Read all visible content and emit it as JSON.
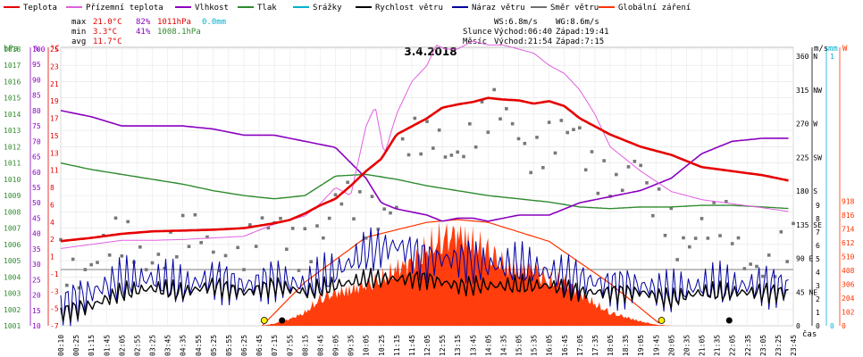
{
  "header": {
    "legend": [
      {
        "label": "Teplota",
        "color": "#e60000"
      },
      {
        "label": "Přízemní teplota",
        "color": "#e060e0"
      },
      {
        "label": "Vlhkost",
        "color": "#8a00c0"
      },
      {
        "label": "Tlak",
        "color": "#2e8b2e"
      },
      {
        "label": "Srážky",
        "color": "#00b0d0"
      },
      {
        "label": "Rychlost větru",
        "color": "#000000"
      },
      {
        "label": "Náraz větru",
        "color": "#0000a0"
      },
      {
        "label": "Směr větru",
        "color": "#707070"
      },
      {
        "label": "Globální záření",
        "color": "#ff3300"
      }
    ],
    "stats": {
      "max": {
        "label": "max",
        "temp": "21.0°C",
        "hum": "82%",
        "press": "1011hPa",
        "rain": "0.0mm"
      },
      "min": {
        "label": "min",
        "temp": "3.3°C",
        "hum": "41%",
        "press": "1008.1hPa"
      },
      "avg": {
        "label": "avg",
        "temp": "11.7°C"
      }
    },
    "wind_stats": {
      "ws": "WS:6.8m/s",
      "wg": "WG:8.6m/s"
    },
    "sun": {
      "label": "Slunce",
      "rise": "Východ:06:40",
      "set": "Západ:19:41"
    },
    "moon": {
      "label": "Měsíc",
      "rise": "Východ:21:54",
      "set": "Západ:7:15"
    }
  },
  "chart_data": {
    "type": "line",
    "title": "3.4.2018",
    "xlabel": "čas",
    "x_ticks": [
      "00:10",
      "00:25",
      "01:15",
      "01:45",
      "02:05",
      "02:55",
      "03:25",
      "03:45",
      "04:35",
      "04:55",
      "05:25",
      "05:55",
      "06:25",
      "06:45",
      "07:15",
      "07:55",
      "08:15",
      "08:45",
      "09:05",
      "09:35",
      "10:05",
      "10:25",
      "11:15",
      "11:45",
      "12:05",
      "12:55",
      "13:15",
      "13:45",
      "14:05",
      "14:35",
      "15:05",
      "15:35",
      "16:05",
      "16:45",
      "17:05",
      "17:35",
      "18:05",
      "18:35",
      "19:05",
      "19:45",
      "20:05",
      "20:35",
      "21:05",
      "21:35",
      "22:05",
      "22:35",
      "23:05",
      "23:25",
      "23:45"
    ],
    "axes": {
      "pressure": {
        "label": "hPa",
        "color": "#2e8b2e",
        "ticks": [
          "1001",
          "1002",
          "1003",
          "1004",
          "1005",
          "1006",
          "1007",
          "1008",
          "1009",
          "1010",
          "1011",
          "1012",
          "1013",
          "1014",
          "1015",
          "1016",
          "1017",
          "1018"
        ]
      },
      "humidity": {
        "label": "%",
        "color": "#8a00c0",
        "ticks": [
          "10",
          "15",
          "20",
          "25",
          "30",
          "35",
          "40",
          "45",
          "50",
          "55",
          "60",
          "65",
          "70",
          "75",
          "80",
          "85",
          "90",
          "95",
          "100"
        ]
      },
      "temperature": {
        "label": "°C",
        "color": "#e60000",
        "ticks": [
          "-7",
          "-5",
          "-3",
          "-1",
          "1",
          "2",
          "4",
          "6",
          "8",
          "11",
          "13",
          "15",
          "17",
          "19",
          "21",
          "23",
          "25"
        ]
      },
      "wind_dir": {
        "ticks": [
          "0",
          "45 NE",
          "90 E",
          "135 SE",
          "180 S",
          "225 SW",
          "270 W",
          "315 NW",
          "360 N"
        ]
      },
      "wind_speed": {
        "label": "m/s",
        "ticks": [
          "0",
          "1",
          "2",
          "3",
          "4",
          "5",
          "6",
          "7",
          "8",
          "9"
        ]
      },
      "rain": {
        "label": "mm",
        "color": "#00b0d0",
        "ticks": [
          "0",
          "1"
        ]
      },
      "radiation": {
        "label": "W",
        "color": "#ff3300",
        "ticks": [
          "0",
          "102",
          "204",
          "306",
          "408",
          "510",
          "612",
          "714",
          "816",
          "918"
        ]
      }
    },
    "series": [
      {
        "name": "Teplota",
        "unit": "°C",
        "x": [
          0,
          1,
          2,
          3,
          4,
          5,
          6,
          7,
          7.5,
          8,
          8.5,
          9,
          9.5,
          10,
          10.5,
          11,
          11.5,
          12,
          12.5,
          13,
          13.5,
          14,
          14.5,
          15,
          15.5,
          16,
          16.5,
          17,
          18,
          19,
          20,
          21,
          22,
          23,
          23.9
        ],
        "values": [
          3.4,
          3.8,
          4.3,
          4.6,
          4.7,
          4.8,
          5.0,
          5.6,
          6.0,
          6.8,
          7.8,
          8.6,
          10.2,
          12.0,
          13.5,
          16.5,
          17.5,
          18.5,
          19.8,
          20.2,
          20.5,
          21.0,
          20.8,
          20.7,
          20.3,
          20.6,
          20.0,
          18.5,
          16.5,
          15.0,
          14.0,
          12.5,
          12.0,
          11.5,
          10.8
        ]
      },
      {
        "name": "Přízemní teplota",
        "unit": "°C",
        "x": [
          0,
          1,
          2,
          3,
          4,
          5,
          6,
          7,
          8,
          8.5,
          9,
          9.5,
          10,
          10.3,
          10.6,
          11,
          11.5,
          12,
          12.3,
          12.6,
          13,
          13.5,
          14,
          14.5,
          15,
          15.5,
          16,
          16.5,
          17,
          17.5,
          18,
          19,
          20,
          21,
          22,
          23,
          23.9
        ],
        "values": [
          2.5,
          3.0,
          3.5,
          3.5,
          3.6,
          3.8,
          4.0,
          5.5,
          6.5,
          8.0,
          10.0,
          9.0,
          17.5,
          20.0,
          14.0,
          19.0,
          23.0,
          25.0,
          27.5,
          27.0,
          27.0,
          28.0,
          27.5,
          27.5,
          27.0,
          26.5,
          25.0,
          24.0,
          22.0,
          19.0,
          15.0,
          12.0,
          9.5,
          8.5,
          8.0,
          7.5,
          7.0
        ]
      },
      {
        "name": "Vlhkost",
        "unit": "%",
        "x": [
          0,
          1,
          2,
          3,
          4,
          5,
          6,
          7,
          8,
          9,
          10,
          10.5,
          11,
          11.5,
          12,
          12.5,
          13,
          13.5,
          14,
          14.5,
          15,
          15.5,
          16,
          16.5,
          17,
          18,
          19,
          20,
          21,
          22,
          23,
          23.9
        ],
        "values": [
          80,
          78,
          75,
          75,
          75,
          74,
          72,
          72,
          70,
          68,
          58,
          50,
          48,
          47,
          46,
          44,
          45,
          45,
          44,
          45,
          46,
          46,
          46,
          48,
          50,
          52,
          54,
          58,
          66,
          70,
          71,
          71
        ]
      },
      {
        "name": "Tlak",
        "unit": "hPa",
        "x": [
          0,
          1,
          2,
          3,
          4,
          5,
          6,
          7,
          8,
          9,
          10,
          11,
          12,
          13,
          14,
          15,
          16,
          17,
          18,
          19,
          20,
          21,
          22,
          23,
          23.9
        ],
        "values": [
          1011.0,
          1010.6,
          1010.3,
          1010.0,
          1009.7,
          1009.3,
          1009.0,
          1008.8,
          1009.0,
          1010.2,
          1010.3,
          1010.0,
          1009.6,
          1009.3,
          1009.0,
          1008.8,
          1008.6,
          1008.3,
          1008.2,
          1008.3,
          1008.3,
          1008.4,
          1008.4,
          1008.3,
          1008.2
        ]
      },
      {
        "name": "Rychlost větru",
        "unit": "m/s",
        "x": [
          0,
          1,
          2,
          3,
          4,
          5,
          6,
          7,
          8,
          9,
          10,
          11,
          12,
          13,
          14,
          15,
          16,
          17,
          18,
          19,
          20,
          21,
          22,
          23,
          23.9
        ],
        "values": [
          1.0,
          1.5,
          2.5,
          2.8,
          2.5,
          3.0,
          2.5,
          3.0,
          2.5,
          3.0,
          3.5,
          3.5,
          3.5,
          3.0,
          3.0,
          3.0,
          3.0,
          2.5,
          2.5,
          2.5,
          2.0,
          2.5,
          2.5,
          2.5,
          2.5
        ]
      },
      {
        "name": "Náraz větru",
        "unit": "m/s",
        "x": [
          0,
          1,
          2,
          3,
          4,
          5,
          6,
          7,
          8,
          9,
          10,
          11,
          12,
          13,
          14,
          15,
          16,
          17,
          18,
          19,
          20,
          21,
          22,
          23,
          23.9
        ],
        "values": [
          1.5,
          2.5,
          3.5,
          3.5,
          3.0,
          3.5,
          3.0,
          3.5,
          3.0,
          4.0,
          5.5,
          6.0,
          5.0,
          5.0,
          4.5,
          4.5,
          4.0,
          3.5,
          3.0,
          3.0,
          2.5,
          3.0,
          3.0,
          3.0,
          3.0
        ]
      },
      {
        "name": "Globální záření",
        "unit": "W",
        "x": [
          0,
          6.6,
          7,
          7.5,
          8,
          8.5,
          9,
          9.5,
          10,
          10.5,
          11,
          11.5,
          12,
          12.5,
          13,
          13.5,
          14,
          14.5,
          15,
          15.5,
          16,
          16.5,
          17,
          17.5,
          18,
          18.5,
          19,
          19.5,
          20,
          23.9
        ],
        "values": [
          0,
          0,
          20,
          60,
          120,
          250,
          300,
          330,
          380,
          420,
          520,
          580,
          700,
          800,
          830,
          760,
          680,
          560,
          500,
          520,
          400,
          420,
          300,
          200,
          120,
          80,
          40,
          10,
          0,
          0
        ]
      }
    ],
    "clear_sky_radiation": {
      "x": [
        6.6,
        8,
        10,
        12,
        13,
        14,
        16,
        18,
        19.7
      ],
      "values": [
        0,
        320,
        650,
        760,
        780,
        760,
        620,
        310,
        0
      ]
    },
    "wind_direction_deg": [
      90,
      95,
      100,
      110,
      105,
      100,
      110,
      120,
      130,
      150,
      170,
      230,
      250,
      260,
      270,
      250,
      240,
      220,
      200,
      150,
      130,
      120,
      100,
      90,
      95
    ],
    "events": {
      "sunrise": "06:40",
      "sunset": "19:41",
      "moonrise": "21:54",
      "moonset": "07:15"
    }
  }
}
